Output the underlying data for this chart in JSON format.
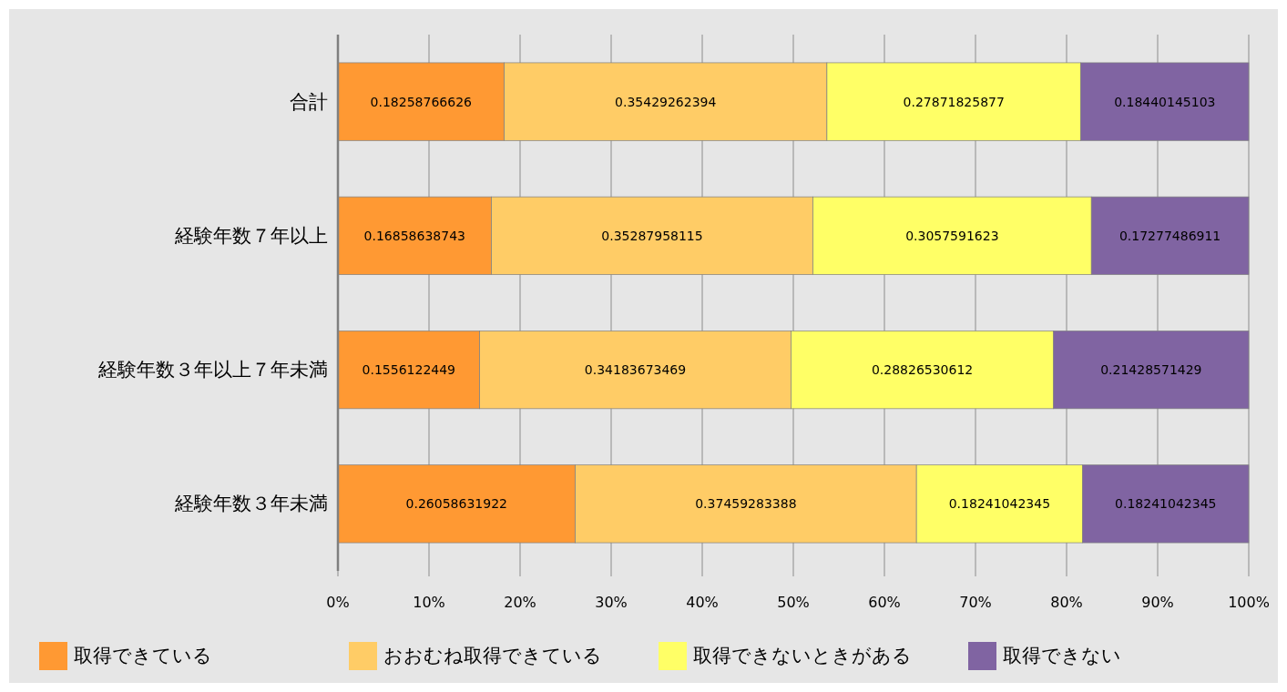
{
  "chart_data": {
    "type": "bar",
    "orientation": "horizontal",
    "stacked": true,
    "categories": [
      "合計",
      "経験年数７年以上",
      "経験年数３年以上７年未満",
      "経験年数３年未満"
    ],
    "series": [
      {
        "name": "取得できている",
        "color": "#ff9933",
        "values": [
          0.18258766626,
          0.16858638743,
          0.1556122449,
          0.26058631922
        ]
      },
      {
        "name": "おおむね取得できている",
        "color": "#ffcc66",
        "values": [
          0.35429262394,
          0.35287958115,
          0.34183673469,
          0.37459283388
        ]
      },
      {
        "name": "取得できないときがある",
        "color": "#ffff66",
        "values": [
          0.27871825877,
          0.3057591623,
          0.28826530612,
          0.18241042345
        ]
      },
      {
        "name": "取得できない",
        "color": "#8064a2",
        "values": [
          0.18440145103,
          0.17277486911,
          0.21428571429,
          0.18241042345
        ]
      }
    ],
    "xlim": [
      0,
      1
    ],
    "xticks": [
      {
        "value": 0,
        "label": "0%"
      },
      {
        "value": 0.1,
        "label": "10%"
      },
      {
        "value": 0.2,
        "label": "20%"
      },
      {
        "value": 0.3,
        "label": "30%"
      },
      {
        "value": 0.4,
        "label": "40%"
      },
      {
        "value": 0.5,
        "label": "50%"
      },
      {
        "value": 0.6,
        "label": "60%"
      },
      {
        "value": 0.7,
        "label": "70%"
      },
      {
        "value": 0.8,
        "label": "80%"
      },
      {
        "value": 0.9,
        "label": "90%"
      },
      {
        "value": 1,
        "label": "100%"
      }
    ],
    "grid": "x",
    "legend": "bottom",
    "data_labels": true
  }
}
